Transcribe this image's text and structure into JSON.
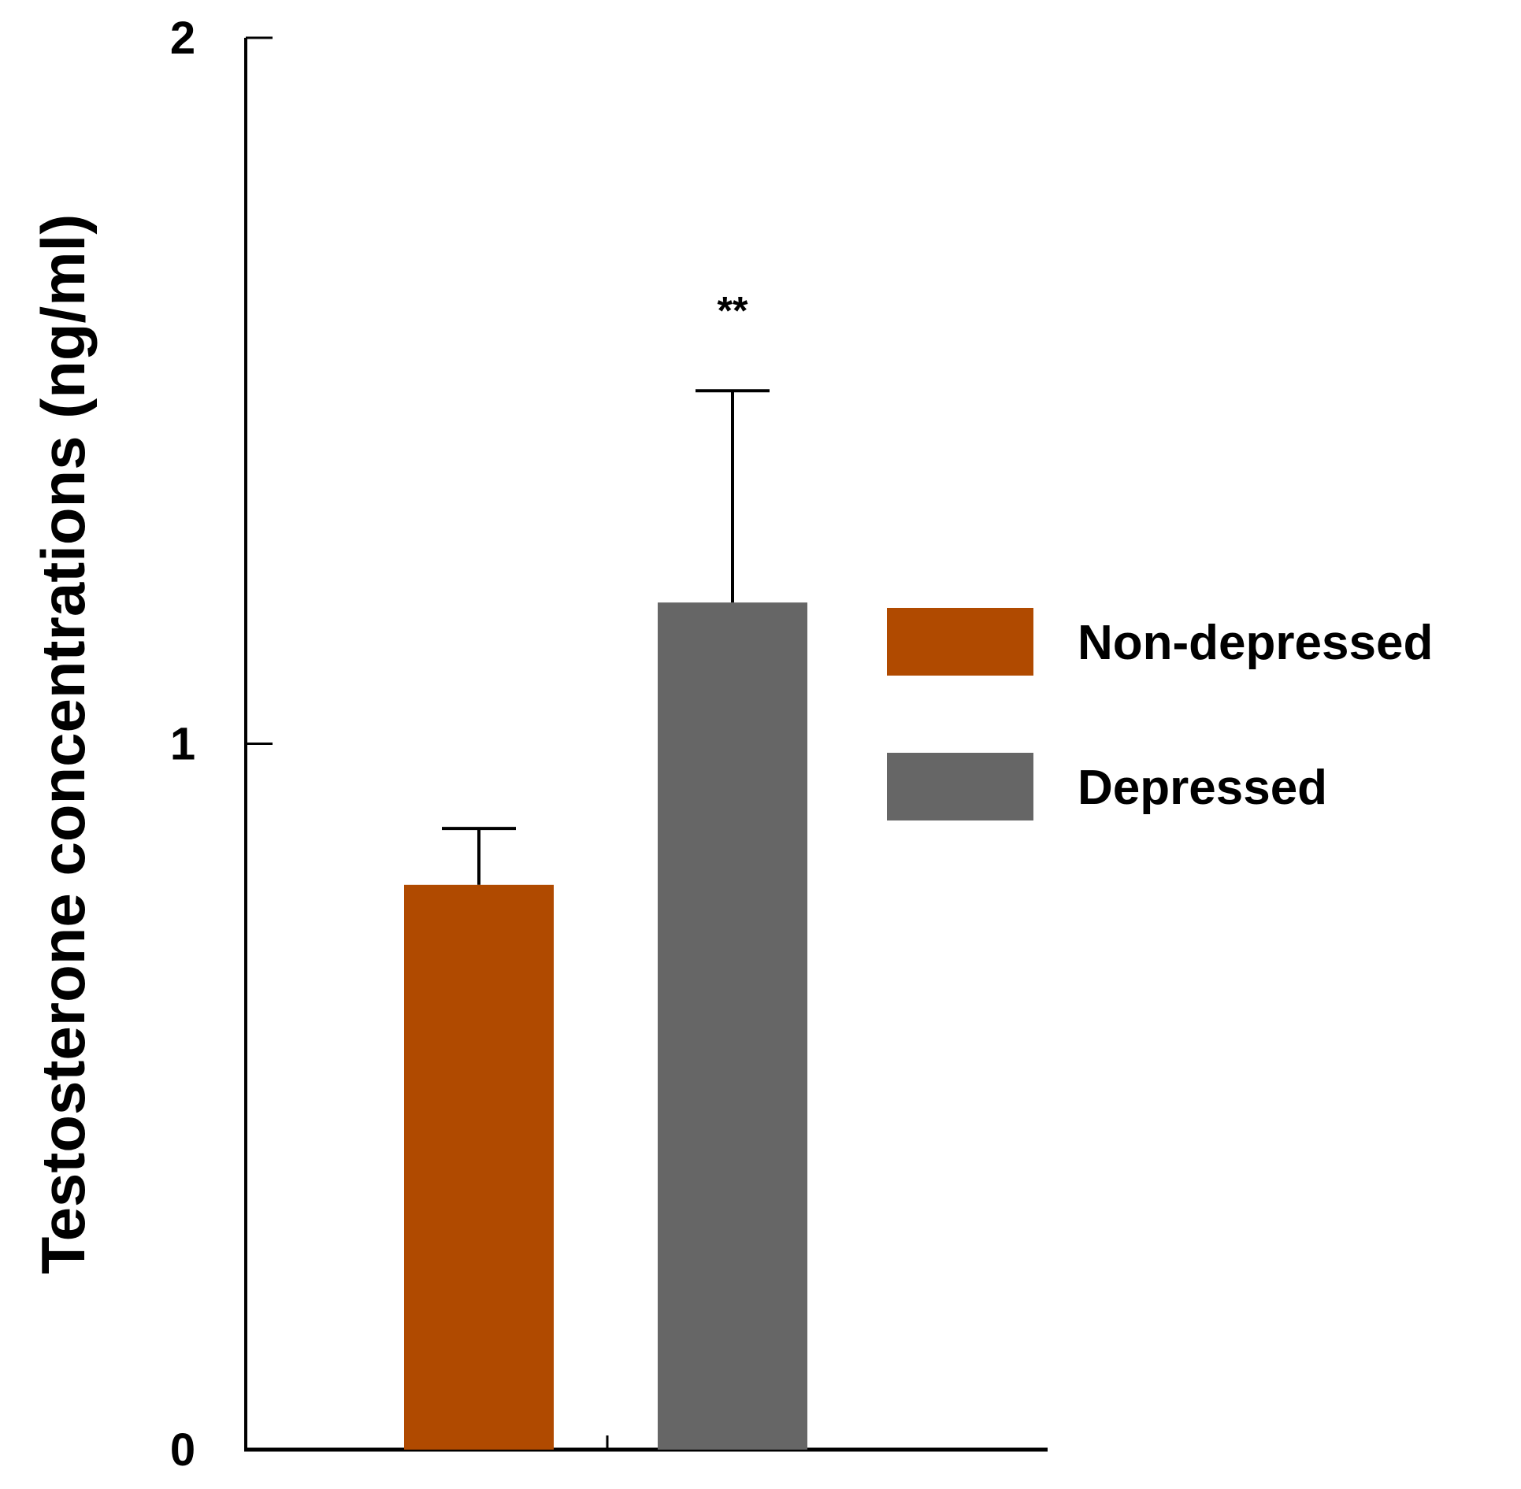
{
  "chart_data": {
    "type": "bar",
    "title": "",
    "xlabel": "",
    "ylabel": "Testosterone concentrations (ng/ml)",
    "ylim": [
      0,
      2
    ],
    "yticks": [
      0,
      1,
      2
    ],
    "ytick_labels": [
      "0",
      "1",
      "2"
    ],
    "grid": false,
    "legend_position": "right",
    "categories": [
      "Non-depressed",
      "Depressed"
    ],
    "values": [
      0.8,
      1.2
    ],
    "errors": [
      0.08,
      0.3
    ],
    "colors": [
      "#b04a00",
      "#666666"
    ],
    "annotations": [
      {
        "category": "Depressed",
        "text": "**"
      }
    ],
    "legend": [
      {
        "label": "Non-depressed",
        "color": "#b04a00"
      },
      {
        "label": "Depressed",
        "color": "#666666"
      }
    ]
  }
}
